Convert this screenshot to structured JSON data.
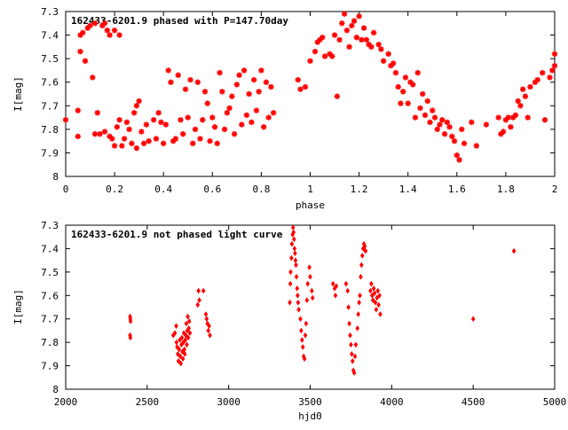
{
  "chart_data": [
    {
      "type": "scatter",
      "title": "162433-6201.9 phased with P=147.70day",
      "xlabel": "phase",
      "ylabel": "I[mag]",
      "xlim": [
        0,
        2
      ],
      "ylim": [
        8,
        7.3
      ],
      "y_inverted": true,
      "xticks": [
        0,
        0.2,
        0.4,
        0.6,
        0.8,
        1,
        1.2,
        1.4,
        1.6,
        1.8,
        2
      ],
      "xtick_labels": [
        "0",
        "0.2",
        "0.4",
        "0.6",
        "0.8",
        "1",
        "1.2",
        "1.4",
        "1.6",
        "1.8",
        "2"
      ],
      "yticks": [
        7.3,
        7.4,
        7.5,
        7.6,
        7.7,
        7.8,
        7.9,
        8
      ],
      "ytick_labels": [
        "7.3",
        "7.4",
        "7.5",
        "7.6",
        "7.7",
        "7.8",
        "7.9",
        "8"
      ],
      "grid": false,
      "marker_color": "#ff0000",
      "points": [
        [
          0.0,
          7.76
        ],
        [
          0.05,
          7.72
        ],
        [
          0.05,
          7.83
        ],
        [
          0.06,
          7.47
        ],
        [
          0.06,
          7.4
        ],
        [
          0.07,
          7.39
        ],
        [
          0.08,
          7.51
        ],
        [
          0.09,
          7.37
        ],
        [
          0.1,
          7.36
        ],
        [
          0.11,
          7.58
        ],
        [
          0.12,
          7.35
        ],
        [
          0.12,
          7.82
        ],
        [
          0.13,
          7.73
        ],
        [
          0.14,
          7.82
        ],
        [
          0.15,
          7.36
        ],
        [
          0.16,
          7.81
        ],
        [
          0.16,
          7.35
        ],
        [
          0.17,
          7.38
        ],
        [
          0.18,
          7.4
        ],
        [
          0.18,
          7.83
        ],
        [
          0.19,
          7.84
        ],
        [
          0.2,
          7.38
        ],
        [
          0.2,
          7.87
        ],
        [
          0.21,
          7.79
        ],
        [
          0.22,
          7.4
        ],
        [
          0.22,
          7.76
        ],
        [
          0.23,
          7.87
        ],
        [
          0.24,
          7.84
        ],
        [
          0.25,
          7.77
        ],
        [
          0.26,
          7.8
        ],
        [
          0.27,
          7.86
        ],
        [
          0.28,
          7.73
        ],
        [
          0.29,
          7.88
        ],
        [
          0.29,
          7.7
        ],
        [
          0.3,
          7.68
        ],
        [
          0.31,
          7.81
        ],
        [
          0.32,
          7.86
        ],
        [
          0.33,
          7.78
        ],
        [
          0.34,
          7.85
        ],
        [
          0.36,
          7.76
        ],
        [
          0.37,
          7.84
        ],
        [
          0.38,
          7.73
        ],
        [
          0.39,
          7.77
        ],
        [
          0.4,
          7.86
        ],
        [
          0.41,
          7.78
        ],
        [
          0.42,
          7.55
        ],
        [
          0.43,
          7.6
        ],
        [
          0.44,
          7.85
        ],
        [
          0.45,
          7.84
        ],
        [
          0.46,
          7.57
        ],
        [
          0.47,
          7.76
        ],
        [
          0.48,
          7.82
        ],
        [
          0.49,
          7.63
        ],
        [
          0.5,
          7.75
        ],
        [
          0.51,
          7.59
        ],
        [
          0.52,
          7.86
        ],
        [
          0.53,
          7.8
        ],
        [
          0.54,
          7.6
        ],
        [
          0.55,
          7.84
        ],
        [
          0.56,
          7.76
        ],
        [
          0.57,
          7.64
        ],
        [
          0.58,
          7.69
        ],
        [
          0.59,
          7.85
        ],
        [
          0.6,
          7.75
        ],
        [
          0.61,
          7.79
        ],
        [
          0.62,
          7.86
        ],
        [
          0.63,
          7.56
        ],
        [
          0.64,
          7.64
        ],
        [
          0.65,
          7.8
        ],
        [
          0.66,
          7.73
        ],
        [
          0.67,
          7.71
        ],
        [
          0.68,
          7.66
        ],
        [
          0.69,
          7.82
        ],
        [
          0.7,
          7.61
        ],
        [
          0.71,
          7.57
        ],
        [
          0.72,
          7.78
        ],
        [
          0.73,
          7.55
        ],
        [
          0.74,
          7.74
        ],
        [
          0.75,
          7.65
        ],
        [
          0.76,
          7.77
        ],
        [
          0.77,
          7.59
        ],
        [
          0.78,
          7.72
        ],
        [
          0.79,
          7.64
        ],
        [
          0.8,
          7.55
        ],
        [
          0.81,
          7.79
        ],
        [
          0.82,
          7.6
        ],
        [
          0.83,
          7.75
        ],
        [
          0.84,
          7.62
        ],
        [
          0.85,
          7.73
        ],
        [
          0.95,
          7.59
        ],
        [
          0.96,
          7.63
        ],
        [
          0.98,
          7.62
        ],
        [
          1.0,
          7.51
        ],
        [
          1.02,
          7.47
        ],
        [
          1.03,
          7.43
        ],
        [
          1.04,
          7.42
        ],
        [
          1.05,
          7.41
        ],
        [
          1.06,
          7.49
        ],
        [
          1.08,
          7.48
        ],
        [
          1.09,
          7.49
        ],
        [
          1.1,
          7.4
        ],
        [
          1.11,
          7.66
        ],
        [
          1.12,
          7.42
        ],
        [
          1.13,
          7.35
        ],
        [
          1.14,
          7.31
        ],
        [
          1.15,
          7.38
        ],
        [
          1.16,
          7.45
        ],
        [
          1.17,
          7.36
        ],
        [
          1.18,
          7.34
        ],
        [
          1.19,
          7.41
        ],
        [
          1.2,
          7.32
        ],
        [
          1.21,
          7.42
        ],
        [
          1.22,
          7.37
        ],
        [
          1.23,
          7.42
        ],
        [
          1.24,
          7.44
        ],
        [
          1.25,
          7.45
        ],
        [
          1.26,
          7.39
        ],
        [
          1.28,
          7.44
        ],
        [
          1.29,
          7.46
        ],
        [
          1.3,
          7.51
        ],
        [
          1.32,
          7.48
        ],
        [
          1.33,
          7.53
        ],
        [
          1.34,
          7.52
        ],
        [
          1.35,
          7.56
        ],
        [
          1.36,
          7.62
        ],
        [
          1.37,
          7.69
        ],
        [
          1.38,
          7.64
        ],
        [
          1.39,
          7.58
        ],
        [
          1.4,
          7.69
        ],
        [
          1.41,
          7.6
        ],
        [
          1.42,
          7.61
        ],
        [
          1.43,
          7.75
        ],
        [
          1.44,
          7.56
        ],
        [
          1.45,
          7.71
        ],
        [
          1.46,
          7.65
        ],
        [
          1.47,
          7.74
        ],
        [
          1.48,
          7.68
        ],
        [
          1.49,
          7.77
        ],
        [
          1.5,
          7.72
        ],
        [
          1.51,
          7.75
        ],
        [
          1.52,
          7.8
        ],
        [
          1.53,
          7.78
        ],
        [
          1.54,
          7.76
        ],
        [
          1.55,
          7.82
        ],
        [
          1.56,
          7.77
        ],
        [
          1.57,
          7.79
        ],
        [
          1.58,
          7.83
        ],
        [
          1.59,
          7.85
        ],
        [
          1.6,
          7.91
        ],
        [
          1.61,
          7.93
        ],
        [
          1.62,
          7.8
        ],
        [
          1.63,
          7.86
        ],
        [
          1.66,
          7.77
        ],
        [
          1.68,
          7.87
        ],
        [
          1.72,
          7.78
        ],
        [
          1.77,
          7.75
        ],
        [
          1.78,
          7.82
        ],
        [
          1.79,
          7.81
        ],
        [
          1.8,
          7.76
        ],
        [
          1.81,
          7.75
        ],
        [
          1.82,
          7.79
        ],
        [
          1.83,
          7.75
        ],
        [
          1.84,
          7.74
        ],
        [
          1.85,
          7.68
        ],
        [
          1.86,
          7.7
        ],
        [
          1.87,
          7.63
        ],
        [
          1.88,
          7.66
        ],
        [
          1.89,
          7.75
        ],
        [
          1.9,
          7.62
        ],
        [
          1.92,
          7.6
        ],
        [
          1.93,
          7.59
        ],
        [
          1.95,
          7.56
        ],
        [
          1.96,
          7.76
        ],
        [
          1.98,
          7.58
        ],
        [
          1.99,
          7.55
        ],
        [
          2.0,
          7.53
        ],
        [
          2.0,
          7.48
        ]
      ]
    },
    {
      "type": "scatter",
      "title": "162433-6201.9 not phased light curve",
      "xlabel": "hjd0",
      "ylabel": "I[mag]",
      "xlim": [
        2000,
        5000
      ],
      "ylim": [
        8,
        7.3
      ],
      "y_inverted": true,
      "xticks": [
        2000,
        2500,
        3000,
        3500,
        4000,
        4500,
        5000
      ],
      "xtick_labels": [
        "2000",
        "2500",
        "3000",
        "3500",
        "4000",
        "4500",
        "5000"
      ],
      "yticks": [
        7.3,
        7.4,
        7.5,
        7.6,
        7.7,
        7.8,
        7.9,
        8
      ],
      "ytick_labels": [
        "7.3",
        "7.4",
        "7.5",
        "7.6",
        "7.7",
        "7.8",
        "7.9",
        "8"
      ],
      "grid": false,
      "marker_color": "#ff0000",
      "points": [
        [
          2395,
          7.69
        ],
        [
          2397,
          7.7
        ],
        [
          2398,
          7.71
        ],
        [
          2395,
          7.77
        ],
        [
          2397,
          7.78
        ],
        [
          2660,
          7.77
        ],
        [
          2670,
          7.76
        ],
        [
          2678,
          7.73
        ],
        [
          2680,
          7.8
        ],
        [
          2684,
          7.82
        ],
        [
          2688,
          7.85
        ],
        [
          2692,
          7.88
        ],
        [
          2696,
          7.83
        ],
        [
          2700,
          7.79
        ],
        [
          2703,
          7.86
        ],
        [
          2706,
          7.89
        ],
        [
          2710,
          7.81
        ],
        [
          2713,
          7.78
        ],
        [
          2716,
          7.84
        ],
        [
          2719,
          7.87
        ],
        [
          2722,
          7.8
        ],
        [
          2725,
          7.76
        ],
        [
          2728,
          7.83
        ],
        [
          2731,
          7.85
        ],
        [
          2734,
          7.79
        ],
        [
          2737,
          7.77
        ],
        [
          2740,
          7.72
        ],
        [
          2743,
          7.81
        ],
        [
          2746,
          7.75
        ],
        [
          2749,
          7.69
        ],
        [
          2752,
          7.78
        ],
        [
          2755,
          7.74
        ],
        [
          2758,
          7.71
        ],
        [
          2762,
          7.76
        ],
        [
          2810,
          7.64
        ],
        [
          2815,
          7.58
        ],
        [
          2820,
          7.62
        ],
        [
          2845,
          7.58
        ],
        [
          2860,
          7.68
        ],
        [
          2865,
          7.7
        ],
        [
          2870,
          7.72
        ],
        [
          2875,
          7.75
        ],
        [
          2880,
          7.73
        ],
        [
          2885,
          7.77
        ],
        [
          3375,
          7.63
        ],
        [
          3378,
          7.55
        ],
        [
          3380,
          7.5
        ],
        [
          3385,
          7.44
        ],
        [
          3388,
          7.38
        ],
        [
          3392,
          7.34
        ],
        [
          3395,
          7.31
        ],
        [
          3398,
          7.33
        ],
        [
          3401,
          7.36
        ],
        [
          3404,
          7.4
        ],
        [
          3407,
          7.42
        ],
        [
          3410,
          7.45
        ],
        [
          3413,
          7.47
        ],
        [
          3416,
          7.52
        ],
        [
          3420,
          7.57
        ],
        [
          3423,
          7.6
        ],
        [
          3426,
          7.63
        ],
        [
          3430,
          7.66
        ],
        [
          3440,
          7.7
        ],
        [
          3445,
          7.75
        ],
        [
          3450,
          7.79
        ],
        [
          3455,
          7.82
        ],
        [
          3460,
          7.86
        ],
        [
          3465,
          7.87
        ],
        [
          3470,
          7.77
        ],
        [
          3475,
          7.72
        ],
        [
          3480,
          7.62
        ],
        [
          3485,
          7.55
        ],
        [
          3495,
          7.48
        ],
        [
          3500,
          7.52
        ],
        [
          3510,
          7.58
        ],
        [
          3515,
          7.61
        ],
        [
          3640,
          7.55
        ],
        [
          3650,
          7.57
        ],
        [
          3655,
          7.6
        ],
        [
          3660,
          7.56
        ],
        [
          3720,
          7.55
        ],
        [
          3730,
          7.58
        ],
        [
          3735,
          7.65
        ],
        [
          3740,
          7.72
        ],
        [
          3745,
          7.77
        ],
        [
          3750,
          7.81
        ],
        [
          3755,
          7.85
        ],
        [
          3760,
          7.88
        ],
        [
          3765,
          7.92
        ],
        [
          3770,
          7.93
        ],
        [
          3775,
          7.86
        ],
        [
          3780,
          7.81
        ],
        [
          3790,
          7.74
        ],
        [
          3795,
          7.68
        ],
        [
          3800,
          7.63
        ],
        [
          3805,
          7.6
        ],
        [
          3810,
          7.52
        ],
        [
          3815,
          7.47
        ],
        [
          3820,
          7.43
        ],
        [
          3825,
          7.4
        ],
        [
          3830,
          7.38
        ],
        [
          3835,
          7.39
        ],
        [
          3840,
          7.41
        ],
        [
          3870,
          7.58
        ],
        [
          3875,
          7.55
        ],
        [
          3880,
          7.6
        ],
        [
          3885,
          7.62
        ],
        [
          3890,
          7.57
        ],
        [
          3895,
          7.59
        ],
        [
          3900,
          7.63
        ],
        [
          3905,
          7.66
        ],
        [
          3910,
          7.61
        ],
        [
          3915,
          7.58
        ],
        [
          3920,
          7.64
        ],
        [
          3925,
          7.6
        ],
        [
          3930,
          7.68
        ],
        [
          4500,
          7.7
        ],
        [
          4750,
          7.41
        ]
      ]
    }
  ]
}
